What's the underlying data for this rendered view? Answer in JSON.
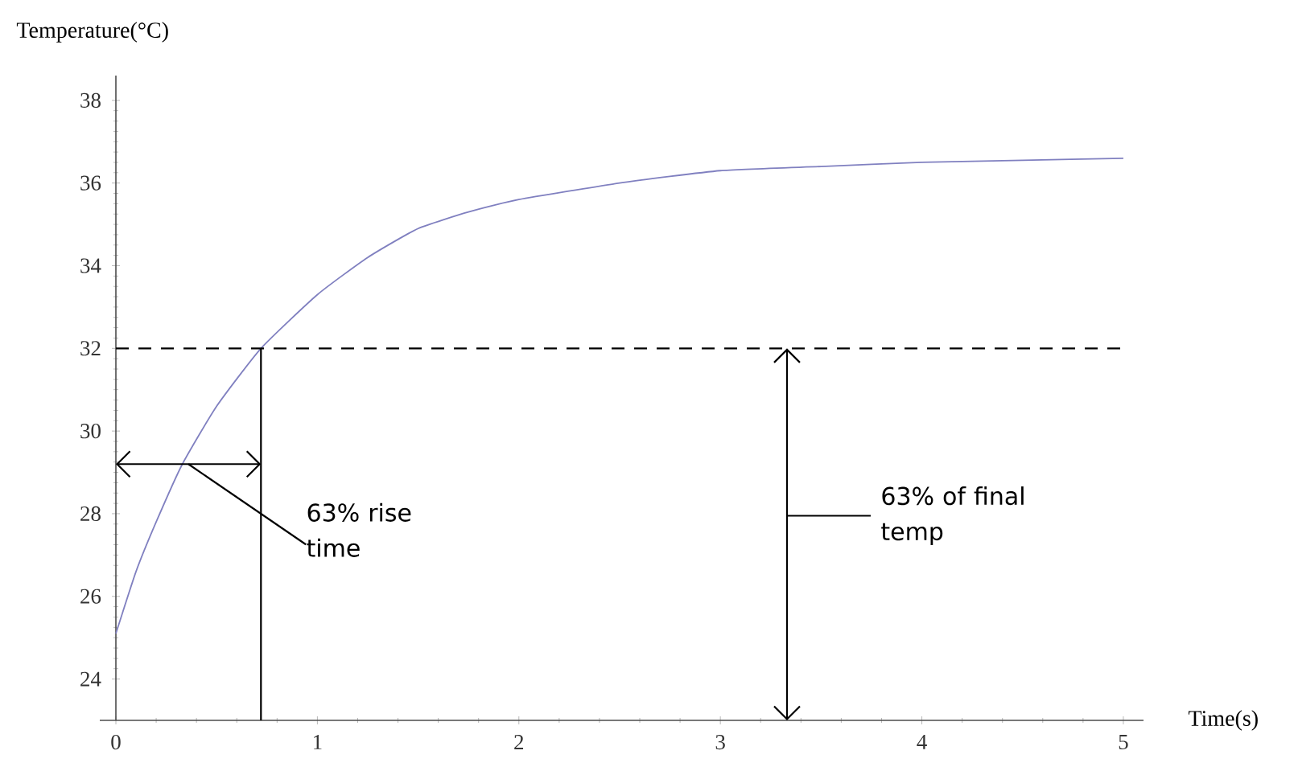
{
  "chart_data": {
    "type": "line",
    "xlabel": "Time(s)",
    "ylabel": "Temperature(°C)",
    "x": [
      0,
      0.1,
      0.2,
      0.33,
      0.5,
      0.72,
      1,
      1.25,
      1.5,
      1.75,
      2,
      2.5,
      3,
      3.5,
      4,
      4.5,
      5
    ],
    "series": [
      {
        "color": "#8080c0",
        "values": [
          25.1,
          26.6,
          27.8,
          29.2,
          30.6,
          32,
          33.3,
          34.2,
          34.9,
          35.3,
          35.6,
          36.0,
          36.3,
          36.4,
          36.5,
          36.55,
          36.6
        ]
      }
    ],
    "xlim": [
      -0.08,
      5.1
    ],
    "ylim": [
      23,
      38.6
    ],
    "xticks": [
      0,
      1,
      2,
      3,
      4,
      5
    ],
    "yticks": [
      24,
      26,
      28,
      30,
      32,
      34,
      36,
      38
    ],
    "ref_lines": [
      {
        "axis": "y",
        "value": 32,
        "line_style": "dashed",
        "color": "#000000"
      },
      {
        "axis": "x",
        "value": 0.72,
        "line_style": "solid",
        "color": "#000000"
      }
    ],
    "annotations": [
      {
        "text": "63% rise time",
        "x": 0.36,
        "y": 29.2
      },
      "63% of final temp"
    ],
    "grid": false,
    "marker": "none",
    "line_style": "solid"
  }
}
